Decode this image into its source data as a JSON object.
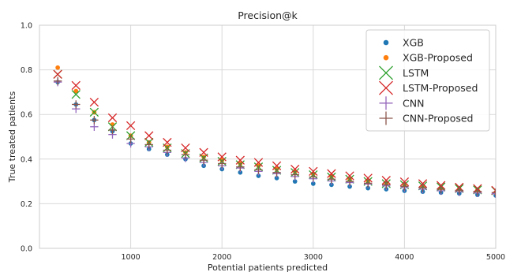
{
  "chart_data": {
    "type": "scatter",
    "title": "Precision@k",
    "xlabel": "Potential patients predicted",
    "ylabel": "True treated patients",
    "xlim": [
      0,
      5000
    ],
    "ylim": [
      0.0,
      1.0
    ],
    "x_ticks": [
      1000,
      2000,
      3000,
      4000,
      5000
    ],
    "x_tick_labels": [
      "1000",
      "2000",
      "3000",
      "4000",
      "5000"
    ],
    "y_ticks": [
      0.0,
      0.2,
      0.4,
      0.6,
      0.8,
      1.0
    ],
    "y_tick_labels": [
      "0.0",
      "0.2",
      "0.4",
      "0.6",
      "0.8",
      "1.0"
    ],
    "grid": true,
    "legend_position": "top-right",
    "x": [
      200,
      400,
      600,
      800,
      1000,
      1200,
      1400,
      1600,
      1800,
      2000,
      2200,
      2400,
      2600,
      2800,
      3000,
      3200,
      3400,
      3600,
      3800,
      4000,
      4200,
      4400,
      4600,
      4800,
      5000
    ],
    "series": [
      {
        "name": "XGB",
        "marker": "circle",
        "color": "#1f77b4",
        "values": [
          0.745,
          0.645,
          0.575,
          0.525,
          0.47,
          0.445,
          0.42,
          0.4,
          0.37,
          0.355,
          0.34,
          0.325,
          0.315,
          0.3,
          0.29,
          0.285,
          0.277,
          0.27,
          0.265,
          0.258,
          0.254,
          0.25,
          0.246,
          0.24,
          0.237
        ]
      },
      {
        "name": "XGB-Proposed",
        "marker": "circle",
        "color": "#ff7f0e",
        "values": [
          0.81,
          0.705,
          0.61,
          0.555,
          0.505,
          0.475,
          0.455,
          0.43,
          0.41,
          0.395,
          0.38,
          0.37,
          0.355,
          0.345,
          0.333,
          0.322,
          0.31,
          0.3,
          0.292,
          0.285,
          0.278,
          0.27,
          0.265,
          0.26,
          0.25
        ]
      },
      {
        "name": "LSTM",
        "marker": "x",
        "color": "#2ca02c",
        "values": [
          0.78,
          0.69,
          0.61,
          0.545,
          0.505,
          0.475,
          0.45,
          0.425,
          0.405,
          0.39,
          0.375,
          0.365,
          0.35,
          0.34,
          0.33,
          0.32,
          0.31,
          0.3,
          0.29,
          0.285,
          0.28,
          0.275,
          0.268,
          0.262,
          0.258
        ]
      },
      {
        "name": "LSTM-Proposed",
        "marker": "x",
        "color": "#d62728",
        "values": [
          0.78,
          0.73,
          0.655,
          0.585,
          0.55,
          0.505,
          0.475,
          0.45,
          0.43,
          0.41,
          0.395,
          0.385,
          0.37,
          0.355,
          0.345,
          0.335,
          0.325,
          0.315,
          0.305,
          0.298,
          0.29,
          0.282,
          0.274,
          0.268,
          0.26
        ]
      },
      {
        "name": "CNN",
        "marker": "plus",
        "color": "#9467bd",
        "values": [
          0.745,
          0.625,
          0.545,
          0.51,
          0.47,
          0.455,
          0.43,
          0.405,
          0.385,
          0.37,
          0.36,
          0.345,
          0.335,
          0.322,
          0.312,
          0.302,
          0.295,
          0.288,
          0.28,
          0.272,
          0.265,
          0.258,
          0.253,
          0.248,
          0.245
        ]
      },
      {
        "name": "CNN-Proposed",
        "marker": "plus",
        "color": "#8c564b",
        "values": [
          0.75,
          0.645,
          0.575,
          0.53,
          0.49,
          0.465,
          0.44,
          0.42,
          0.395,
          0.38,
          0.365,
          0.352,
          0.34,
          0.33,
          0.32,
          0.31,
          0.3,
          0.292,
          0.285,
          0.278,
          0.272,
          0.265,
          0.26,
          0.255,
          0.25
        ]
      }
    ]
  }
}
